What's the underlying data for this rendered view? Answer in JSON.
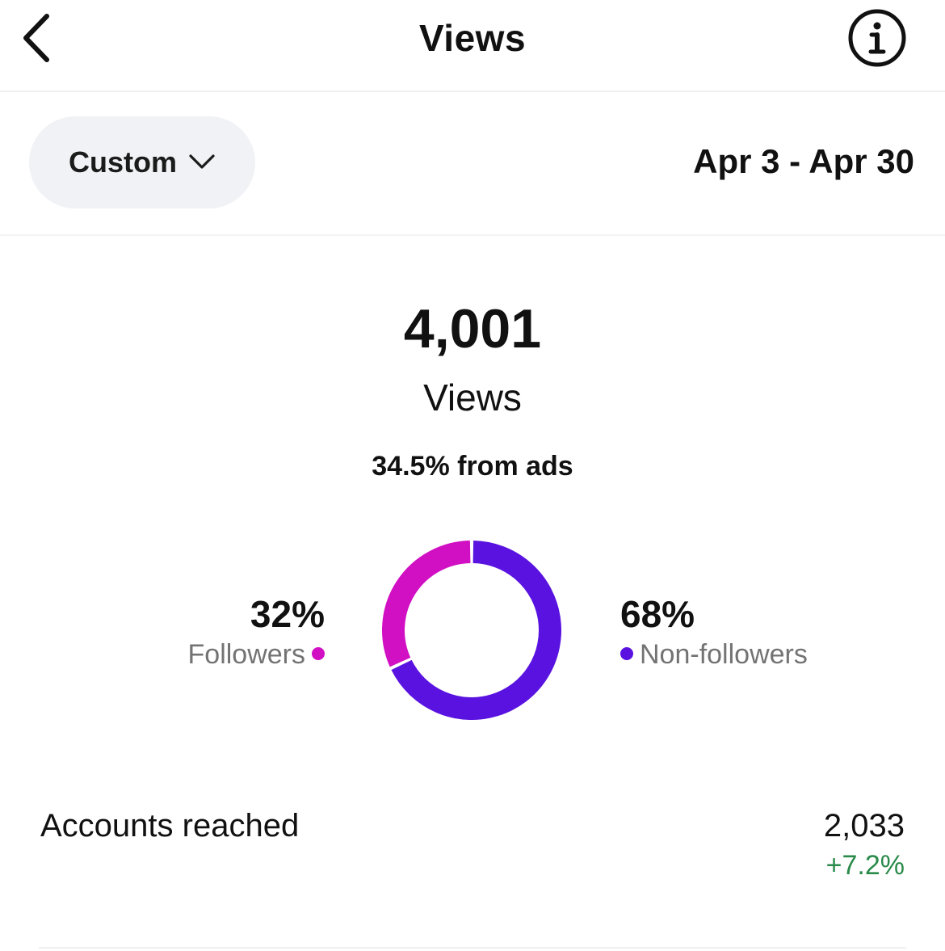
{
  "header": {
    "title": "Views",
    "back_icon": "chevron-left-icon",
    "info_icon": "info-circle-icon"
  },
  "range": {
    "selector_label": "Custom",
    "selector_icon": "chevron-down-icon",
    "date_range": "Apr 3 - Apr 30"
  },
  "summary": {
    "total_value": "4,001",
    "total_label": "Views",
    "ads_share": "34.5% from ads"
  },
  "audience": {
    "followers": {
      "percent_label": "32%",
      "name": "Followers",
      "fraction": 0.32,
      "color": "#d10fc3"
    },
    "non_followers": {
      "percent_label": "68%",
      "name": "Non-followers",
      "fraction": 0.68,
      "color": "#5a12e0"
    }
  },
  "metrics": {
    "accounts_reached": {
      "label": "Accounts reached",
      "value": "2,033",
      "change": "+7.2%",
      "change_color": "#2a8a4a"
    }
  }
}
